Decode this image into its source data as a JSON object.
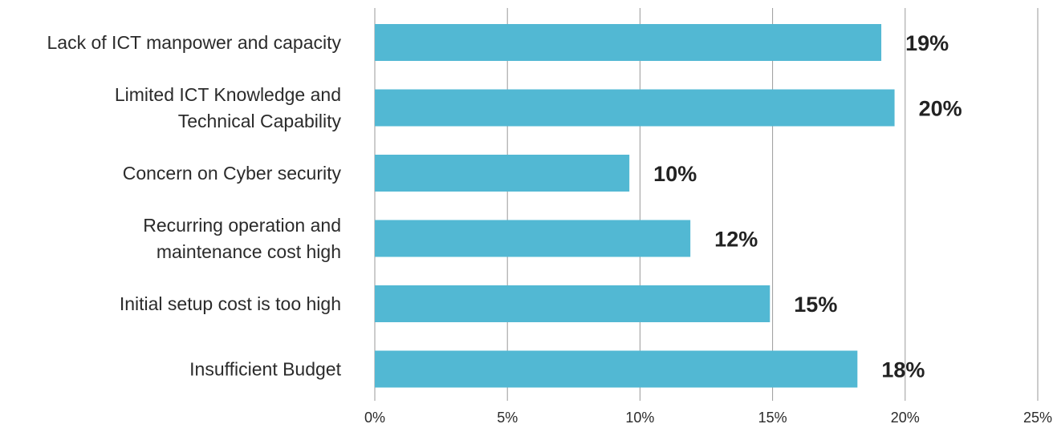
{
  "chart_data": {
    "type": "bar",
    "orientation": "horizontal",
    "categories": [
      [
        "Lack of ICT manpower and capacity"
      ],
      [
        "Limited ICT Knowledge and",
        "Technical Capability"
      ],
      [
        "Concern on Cyber security"
      ],
      [
        "Recurring operation and",
        "maintenance cost high"
      ],
      [
        "Initial setup cost is too high"
      ],
      [
        "Insufficient Budget"
      ]
    ],
    "values": [
      19.1,
      19.6,
      9.6,
      11.9,
      14.9,
      18.2
    ],
    "data_labels": [
      "19%",
      "20%",
      "10%",
      "12%",
      "15%",
      "18%"
    ],
    "xlim": [
      0,
      25
    ],
    "x_ticks": [
      0,
      5,
      10,
      15,
      20,
      25
    ],
    "x_tick_labels": [
      "0%",
      "5%",
      "10%",
      "15%",
      "20%",
      "25%"
    ],
    "grid": "vertical",
    "bar_color": "#52b8d3",
    "grid_color": "#9a9a9a"
  }
}
